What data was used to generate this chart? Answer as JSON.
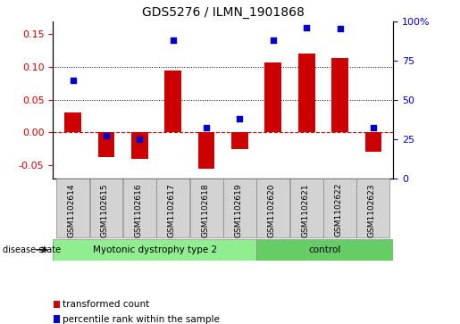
{
  "title": "GDS5276 / ILMN_1901868",
  "categories": [
    "GSM1102614",
    "GSM1102615",
    "GSM1102616",
    "GSM1102617",
    "GSM1102618",
    "GSM1102619",
    "GSM1102620",
    "GSM1102621",
    "GSM1102622",
    "GSM1102623"
  ],
  "bar_values": [
    0.03,
    -0.038,
    -0.04,
    0.095,
    -0.055,
    -0.025,
    0.107,
    0.12,
    0.113,
    -0.03
  ],
  "scatter_values": [
    62,
    27,
    25,
    88,
    32,
    38,
    88,
    96,
    95,
    32
  ],
  "ylim_left": [
    -0.07,
    0.17
  ],
  "ylim_right": [
    0,
    100
  ],
  "yticks_left": [
    -0.05,
    0.0,
    0.05,
    0.1,
    0.15
  ],
  "yticks_right": [
    0,
    25,
    50,
    75,
    100
  ],
  "bar_color": "#cc0000",
  "scatter_color": "#0000cc",
  "zero_line_color": "#cc0000",
  "grid_color": "#000000",
  "disease_groups": [
    {
      "label": "Myotonic dystrophy type 2",
      "start": 0,
      "end": 6,
      "color": "#90ee90"
    },
    {
      "label": "control",
      "start": 6,
      "end": 10,
      "color": "#66cc66"
    }
  ],
  "disease_state_label": "disease state",
  "legend_items": [
    {
      "color": "#cc0000",
      "label": "transformed count"
    },
    {
      "color": "#0000cc",
      "label": "percentile rank within the sample"
    }
  ],
  "scatter_marker_size": 22,
  "bar_width": 0.5,
  "xlim": [
    -0.6,
    9.6
  ]
}
